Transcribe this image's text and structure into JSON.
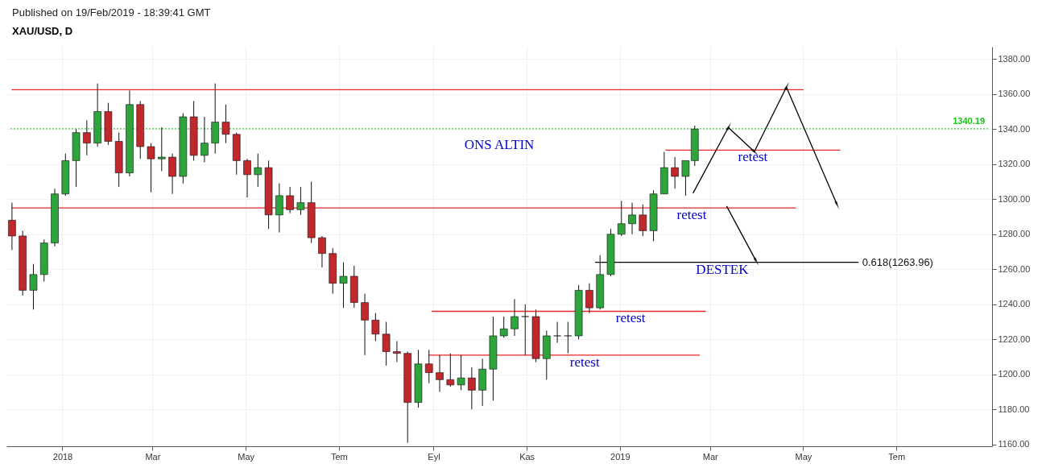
{
  "chart_data": {
    "type": "candlestick",
    "title": "XAU/USD, D",
    "x": [
      "2017-11-29",
      "2017-12-06",
      "2017-12-13",
      "2017-12-20",
      "2017-12-27",
      "2018-01-03",
      "2018-01-10",
      "2018-01-17",
      "2018-01-24",
      "2018-01-31",
      "2018-02-07",
      "2018-02-14",
      "2018-02-21",
      "2018-02-28",
      "2018-03-07",
      "2018-03-14",
      "2018-03-21",
      "2018-03-28",
      "2018-04-04",
      "2018-04-11",
      "2018-04-18",
      "2018-04-25",
      "2018-05-02",
      "2018-05-09",
      "2018-05-16",
      "2018-05-23",
      "2018-05-30",
      "2018-06-06",
      "2018-06-13",
      "2018-06-20",
      "2018-06-27",
      "2018-07-04",
      "2018-07-11",
      "2018-07-18",
      "2018-07-25",
      "2018-08-01",
      "2018-08-08",
      "2018-08-15",
      "2018-08-22",
      "2018-08-29",
      "2018-09-05",
      "2018-09-12",
      "2018-09-19",
      "2018-09-26",
      "2018-10-03",
      "2018-10-10",
      "2018-10-17",
      "2018-10-24",
      "2018-10-31",
      "2018-11-07",
      "2018-11-14",
      "2018-11-21",
      "2018-11-28",
      "2018-12-05",
      "2018-12-12",
      "2018-12-19",
      "2018-12-26",
      "2019-01-02",
      "2019-01-09",
      "2019-01-16",
      "2019-01-23",
      "2019-01-30",
      "2019-02-06",
      "2019-02-13",
      "2019-02-19"
    ],
    "ohlc": [
      [
        1288,
        1298,
        1271,
        1279
      ],
      [
        1279,
        1282,
        1245,
        1248
      ],
      [
        1248,
        1263,
        1237,
        1257
      ],
      [
        1257,
        1277,
        1253,
        1275
      ],
      [
        1275,
        1306,
        1273,
        1303
      ],
      [
        1303,
        1326,
        1302,
        1322
      ],
      [
        1322,
        1340,
        1307,
        1338
      ],
      [
        1338,
        1345,
        1325,
        1332
      ],
      [
        1332,
        1366,
        1330,
        1350
      ],
      [
        1350,
        1355,
        1331,
        1333
      ],
      [
        1333,
        1338,
        1307,
        1315
      ],
      [
        1315,
        1362,
        1313,
        1354
      ],
      [
        1354,
        1356,
        1323,
        1330
      ],
      [
        1330,
        1332,
        1304,
        1323
      ],
      [
        1323,
        1341,
        1316,
        1324
      ],
      [
        1324,
        1326,
        1303,
        1313
      ],
      [
        1313,
        1349,
        1309,
        1347
      ],
      [
        1347,
        1356,
        1322,
        1325
      ],
      [
        1325,
        1347,
        1321,
        1332
      ],
      [
        1332,
        1366,
        1326,
        1344
      ],
      [
        1344,
        1354,
        1332,
        1337
      ],
      [
        1337,
        1338,
        1314,
        1322
      ],
      [
        1322,
        1323,
        1301,
        1314
      ],
      [
        1314,
        1326,
        1307,
        1318
      ],
      [
        1318,
        1322,
        1283,
        1291
      ],
      [
        1291,
        1309,
        1281,
        1302
      ],
      [
        1302,
        1307,
        1292,
        1294
      ],
      [
        1294,
        1307,
        1291,
        1298
      ],
      [
        1298,
        1310,
        1275,
        1278
      ],
      [
        1278,
        1279,
        1261,
        1269
      ],
      [
        1269,
        1272,
        1246,
        1252
      ],
      [
        1252,
        1264,
        1238,
        1256
      ],
      [
        1256,
        1262,
        1238,
        1241
      ],
      [
        1241,
        1246,
        1211,
        1231
      ],
      [
        1231,
        1235,
        1219,
        1223
      ],
      [
        1223,
        1230,
        1205,
        1213
      ],
      [
        1213,
        1219,
        1207,
        1212
      ],
      [
        1212,
        1213,
        1161,
        1184
      ],
      [
        1184,
        1214,
        1181,
        1206
      ],
      [
        1206,
        1214,
        1195,
        1201
      ],
      [
        1201,
        1211,
        1190,
        1197
      ],
      [
        1197,
        1212,
        1193,
        1194
      ],
      [
        1194,
        1211,
        1191,
        1198
      ],
      [
        1198,
        1204,
        1180,
        1191
      ],
      [
        1191,
        1209,
        1182,
        1203
      ],
      [
        1203,
        1233,
        1185,
        1222
      ],
      [
        1222,
        1233,
        1221,
        1226
      ],
      [
        1226,
        1243,
        1222,
        1233
      ],
      [
        1233,
        1240,
        1211,
        1233
      ],
      [
        1233,
        1237,
        1207,
        1209
      ],
      [
        1209,
        1225,
        1197,
        1222
      ],
      [
        1222,
        1230,
        1218,
        1222
      ],
      [
        1222,
        1230,
        1212,
        1222
      ],
      [
        1222,
        1251,
        1220,
        1248
      ],
      [
        1248,
        1252,
        1235,
        1238
      ],
      [
        1238,
        1268,
        1237,
        1257
      ],
      [
        1257,
        1283,
        1256,
        1280
      ],
      [
        1280,
        1299,
        1279,
        1286
      ],
      [
        1286,
        1298,
        1280,
        1291
      ],
      [
        1291,
        1297,
        1279,
        1282
      ],
      [
        1282,
        1305,
        1276,
        1303
      ],
      [
        1303,
        1327,
        1303,
        1318
      ],
      [
        1318,
        1324,
        1306,
        1313
      ],
      [
        1313,
        1322,
        1302,
        1322
      ],
      [
        1322,
        1342,
        1319,
        1340
      ]
    ],
    "series": [
      {
        "type": "line",
        "color": "#e8262b",
        "x": [
          "2017-11-29",
          "2019-05-01"
        ],
        "values": [
          1362.5,
          1362.5
        ]
      },
      {
        "type": "line",
        "color": "#e8262b",
        "x": [
          "2017-11-29",
          "2019-04-26"
        ],
        "values": [
          1295,
          1295
        ]
      },
      {
        "type": "line",
        "color": "#e8262b",
        "x": [
          "2019-01-31",
          "2019-05-25"
        ],
        "values": [
          1328,
          1328
        ]
      },
      {
        "type": "line",
        "color": "#e8262b",
        "x": [
          "2018-08-31",
          "2019-02-26"
        ],
        "values": [
          1236,
          1236
        ]
      },
      {
        "type": "line",
        "color": "#e8262b",
        "x": [
          "2018-08-29",
          "2019-02-22"
        ],
        "values": [
          1211,
          1211
        ]
      },
      {
        "type": "line",
        "color": "#000000",
        "x": [
          "2018-12-16",
          "2019-06-06"
        ],
        "values": [
          1263.96,
          1263.96
        ]
      },
      {
        "type": "line",
        "color": "#000000",
        "marker": "triangle",
        "x": [
          "2019-02-18",
          "2019-03-13"
        ],
        "values": [
          1303.6,
          1340.9
        ]
      },
      {
        "type": "line",
        "color": "#000000",
        "marker": "triangle",
        "x": [
          "2019-03-13",
          "2019-03-30"
        ],
        "values": [
          1340.9,
          1327.1
        ]
      },
      {
        "type": "line",
        "color": "#000000",
        "marker": "triangle",
        "x": [
          "2019-03-30",
          "2019-04-20"
        ],
        "values": [
          1327.1,
          1363.9
        ]
      },
      {
        "type": "line",
        "color": "#000000",
        "marker": "triangle",
        "x": [
          "2019-04-20",
          "2019-05-23"
        ],
        "values": [
          1363.9,
          1297.2
        ]
      },
      {
        "type": "line",
        "color": "#000000",
        "marker": "triangle",
        "x": [
          "2019-03-12",
          "2019-03-31"
        ],
        "values": [
          1295.8,
          1265
        ]
      }
    ],
    "ref_lines": [
      {
        "axis": "y",
        "value": 1340.19,
        "label": "1340.19",
        "color": "#19c819",
        "line_style": "dotted"
      }
    ],
    "annotations": [
      "Published on 19/Feb/2019 - 18:39:41 GMT",
      "ONS ALTIN",
      {
        "text": "retest",
        "x": "2019-03-29",
        "y": 1328
      },
      {
        "text": "retest",
        "x": "2019-02-17",
        "y": 1295
      },
      {
        "text": "retest",
        "x": "2019-01-08",
        "y": 1236
      },
      {
        "text": "retest",
        "x": "2018-12-09",
        "y": 1211
      },
      {
        "text": "DESTEK",
        "x": "2019-03-09",
        "y": 1263.96
      },
      {
        "text": "0.618(1263.96)",
        "x": "2019-06-06",
        "y": 1263.96
      }
    ],
    "xlim": [
      "2017-11-28",
      "2019-08-30"
    ],
    "xticks": [
      {
        "value": "2018-01-01",
        "label": "2018"
      },
      {
        "value": "2018-03-01",
        "label": "Mar"
      },
      {
        "value": "2018-05-01",
        "label": "May"
      },
      {
        "value": "2018-07-01",
        "label": "Tem"
      },
      {
        "value": "2018-09-01",
        "label": "Eyl"
      },
      {
        "value": "2018-11-01",
        "label": "Kas"
      },
      {
        "value": "2019-01-01",
        "label": "2019"
      },
      {
        "value": "2019-03-01",
        "label": "Mar"
      },
      {
        "value": "2019-05-01",
        "label": "May"
      },
      {
        "value": "2019-07-01",
        "label": "Tem"
      }
    ],
    "ylim": [
      1159,
      1387
    ],
    "yticks": [
      {
        "value": 1160,
        "label": "1160.00"
      },
      {
        "value": 1180,
        "label": "1180.00"
      },
      {
        "value": 1200,
        "label": "1200.00"
      },
      {
        "value": 1220,
        "label": "1220.00"
      },
      {
        "value": 1240,
        "label": "1240.00"
      },
      {
        "value": 1260,
        "label": "1260.00"
      },
      {
        "value": 1280,
        "label": "1280.00"
      },
      {
        "value": 1300,
        "label": "1300.00"
      },
      {
        "value": 1320,
        "label": "1320.00"
      },
      {
        "value": 1340,
        "label": "1340.00"
      },
      {
        "value": 1360,
        "label": "1360.00"
      },
      {
        "value": 1380,
        "label": "1380.00"
      }
    ],
    "grid": true
  }
}
